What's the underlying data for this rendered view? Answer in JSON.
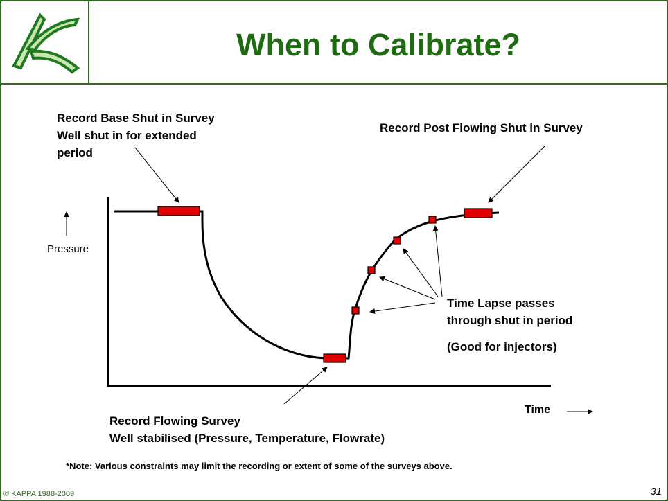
{
  "header": {
    "title": "When to Calibrate?"
  },
  "annotations": {
    "base_shut_in": [
      "Record Base Shut in Survey",
      "Well shut in for extended",
      "period"
    ],
    "post_flowing": "Record Post Flowing Shut in Survey",
    "time_lapse": [
      "Time Lapse passes",
      "through shut in period",
      "(Good for injectors)"
    ],
    "flowing": [
      "Record Flowing Survey",
      "Well stabilised (Pressure, Temperature, Flowrate)"
    ]
  },
  "axes": {
    "y_label": "Pressure",
    "x_label": "Time"
  },
  "note": "*Note: Various constraints may limit the recording or extent of some of the surveys above.",
  "footer": {
    "copyright": "© KAPPA 1988-2009",
    "page": "31"
  }
}
